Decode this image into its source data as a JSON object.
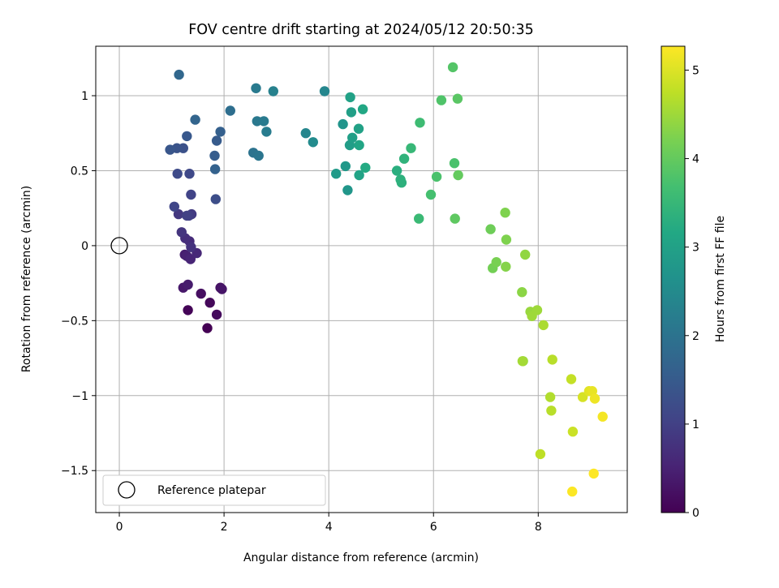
{
  "chart_data": {
    "type": "scatter",
    "title": "FOV centre drift starting at 2024/05/12 20:50:35",
    "xlabel": "Angular distance from reference (arcmin)",
    "ylabel": "Rotation from reference (arcmin)",
    "xlim": [
      -0.45,
      9.7
    ],
    "ylim": [
      -1.78,
      1.33
    ],
    "xticks": [
      0,
      2,
      4,
      6,
      8
    ],
    "yticks": [
      -1.5,
      -1.0,
      -0.5,
      0.0,
      0.5,
      1.0
    ],
    "grid": true,
    "legend": {
      "placement": "lower-left",
      "entries": [
        "Reference platepar"
      ]
    },
    "reference_point": {
      "x": 0,
      "y": 0,
      "label": "Reference platepar"
    },
    "colorbar": {
      "label": "Hours from first FF file",
      "colormap": "viridis",
      "range": [
        0,
        5.27
      ],
      "ticks": [
        0,
        1,
        2,
        3,
        4,
        5
      ]
    },
    "series": [
      {
        "x": [
          1.68,
          1.31,
          1.73,
          1.86,
          1.56,
          1.93,
          1.96,
          1.22,
          1.31,
          1.25,
          1.29,
          1.36,
          1.48,
          1.34,
          1.26,
          1.37,
          1.19,
          1.13,
          1.38,
          1.33,
          1.29,
          1.37,
          1.05,
          1.34,
          1.11,
          1.84,
          1.22,
          1.1,
          0.97,
          1.29,
          1.86,
          1.82,
          1.93,
          1.83,
          1.45,
          1.14,
          2.12,
          2.56,
          2.66,
          2.63,
          2.76,
          2.81,
          2.61,
          2.94,
          3.56,
          3.7,
          3.92,
          4.14,
          4.27,
          4.32,
          4.36,
          4.4,
          4.45,
          4.43,
          4.41,
          4.58,
          4.58,
          4.57,
          4.65,
          4.7,
          5.3,
          5.39,
          5.37,
          5.44,
          5.57,
          5.72,
          5.74,
          5.95,
          6.06,
          6.15,
          6.37,
          6.4,
          6.41,
          6.46,
          6.47,
          7.09,
          7.13,
          7.2,
          7.37,
          7.38,
          7.39,
          7.69,
          7.71,
          7.75,
          7.85,
          7.88,
          7.98,
          7.7,
          8.1,
          8.27,
          8.23,
          8.25,
          8.04,
          8.63,
          8.66,
          8.85,
          8.97,
          9.03,
          9.08,
          9.23,
          8.65,
          9.06
        ],
        "y": [
          -0.55,
          -0.43,
          -0.38,
          -0.46,
          -0.32,
          -0.28,
          -0.29,
          -0.28,
          -0.26,
          -0.06,
          -0.07,
          -0.09,
          -0.05,
          0.03,
          0.05,
          -0.01,
          0.09,
          0.21,
          0.21,
          0.2,
          0.2,
          0.34,
          0.26,
          0.48,
          0.48,
          0.31,
          0.65,
          0.65,
          0.64,
          0.73,
          0.7,
          0.6,
          0.76,
          0.51,
          0.84,
          1.14,
          0.9,
          0.62,
          0.6,
          0.83,
          0.83,
          0.76,
          1.05,
          1.03,
          0.75,
          0.69,
          1.03,
          0.48,
          0.81,
          0.53,
          0.37,
          0.67,
          0.72,
          0.89,
          0.99,
          0.47,
          0.67,
          0.78,
          0.91,
          0.52,
          0.5,
          0.42,
          0.44,
          0.58,
          0.65,
          0.18,
          0.82,
          0.34,
          0.46,
          0.97,
          1.19,
          0.55,
          0.18,
          0.98,
          0.47,
          0.11,
          -0.15,
          -0.11,
          0.22,
          -0.14,
          0.04,
          -0.31,
          -0.77,
          -0.06,
          -0.44,
          -0.47,
          -0.43,
          -0.77,
          -0.53,
          -0.76,
          -1.01,
          -1.1,
          -1.39,
          -0.89,
          -1.24,
          -1.01,
          -0.97,
          -0.97,
          -1.02,
          -1.14,
          -1.64,
          -1.52
        ],
        "hours": [
          0.0,
          0.05,
          0.1,
          0.15,
          0.2,
          0.25,
          0.3,
          0.35,
          0.4,
          0.45,
          0.5,
          0.55,
          0.6,
          0.65,
          0.7,
          0.75,
          0.8,
          0.85,
          0.9,
          0.95,
          1.0,
          1.05,
          1.1,
          1.15,
          1.2,
          1.25,
          1.3,
          1.35,
          1.4,
          1.45,
          1.5,
          1.55,
          1.6,
          1.65,
          1.7,
          1.75,
          1.9,
          2.0,
          2.05,
          2.1,
          2.15,
          2.2,
          2.15,
          2.3,
          2.4,
          2.5,
          2.4,
          2.85,
          2.7,
          2.8,
          2.75,
          2.9,
          2.95,
          2.95,
          3.0,
          3.05,
          3.1,
          3.0,
          3.15,
          3.2,
          3.3,
          3.35,
          3.35,
          3.4,
          3.5,
          3.55,
          3.6,
          3.7,
          3.75,
          3.8,
          3.85,
          3.75,
          3.95,
          3.9,
          4.0,
          4.1,
          4.15,
          4.2,
          4.25,
          4.3,
          4.25,
          4.35,
          4.4,
          4.4,
          4.45,
          4.5,
          4.5,
          4.55,
          4.6,
          4.7,
          4.65,
          4.7,
          4.75,
          4.8,
          4.85,
          4.95,
          5.05,
          5.1,
          5.15,
          5.2,
          5.25,
          5.27
        ]
      }
    ]
  }
}
